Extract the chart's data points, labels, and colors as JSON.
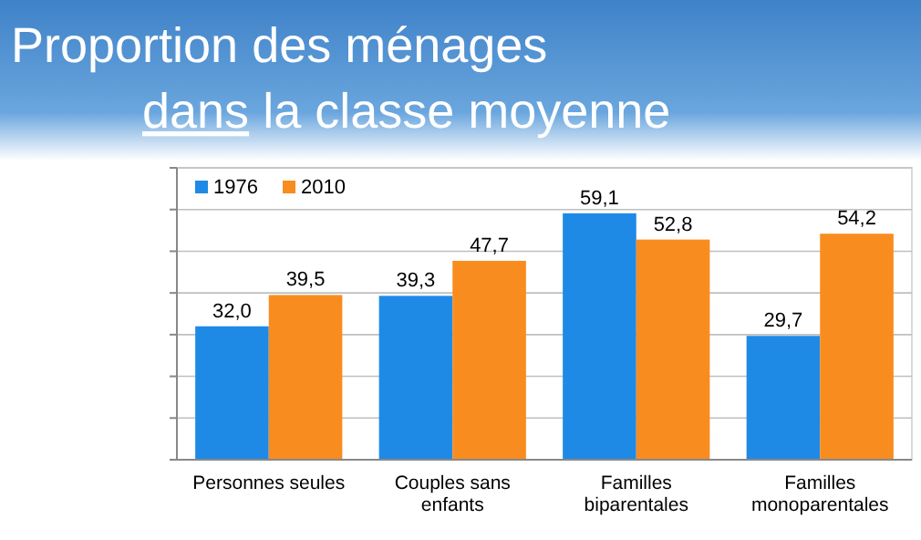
{
  "chart_data": {
    "type": "bar",
    "title": "Proportion des ménages\ndans la classe moyenne",
    "categories": [
      "Personnes seules",
      "Couples sans enfants",
      "Familles biparentales",
      "Familles monoparentales"
    ],
    "series": [
      {
        "name": "1976",
        "color": "#1e8ae6",
        "values": [
          32.0,
          39.3,
          59.1,
          29.7
        ],
        "value_labels": [
          "32,0",
          "39,3",
          "59,1",
          "29,7"
        ]
      },
      {
        "name": "2010",
        "color": "#f98c1f",
        "values": [
          39.5,
          47.7,
          52.8,
          54.2
        ],
        "value_labels": [
          "39,5",
          "47,7",
          "52,8",
          "54,2"
        ]
      }
    ],
    "ylim": [
      0,
      70
    ],
    "yticks": [
      {
        "value": 0,
        "label": null
      },
      {
        "value": 10,
        "label": null
      },
      {
        "value": 20,
        "label": null
      },
      {
        "value": 30,
        "label": null
      },
      {
        "value": 40,
        "label": null
      },
      {
        "value": 50,
        "label": null
      },
      {
        "value": 60,
        "label": null
      },
      {
        "value": 70,
        "label": null
      }
    ],
    "tick_labels": "x",
    "grid": "y",
    "legend": "top left"
  }
}
